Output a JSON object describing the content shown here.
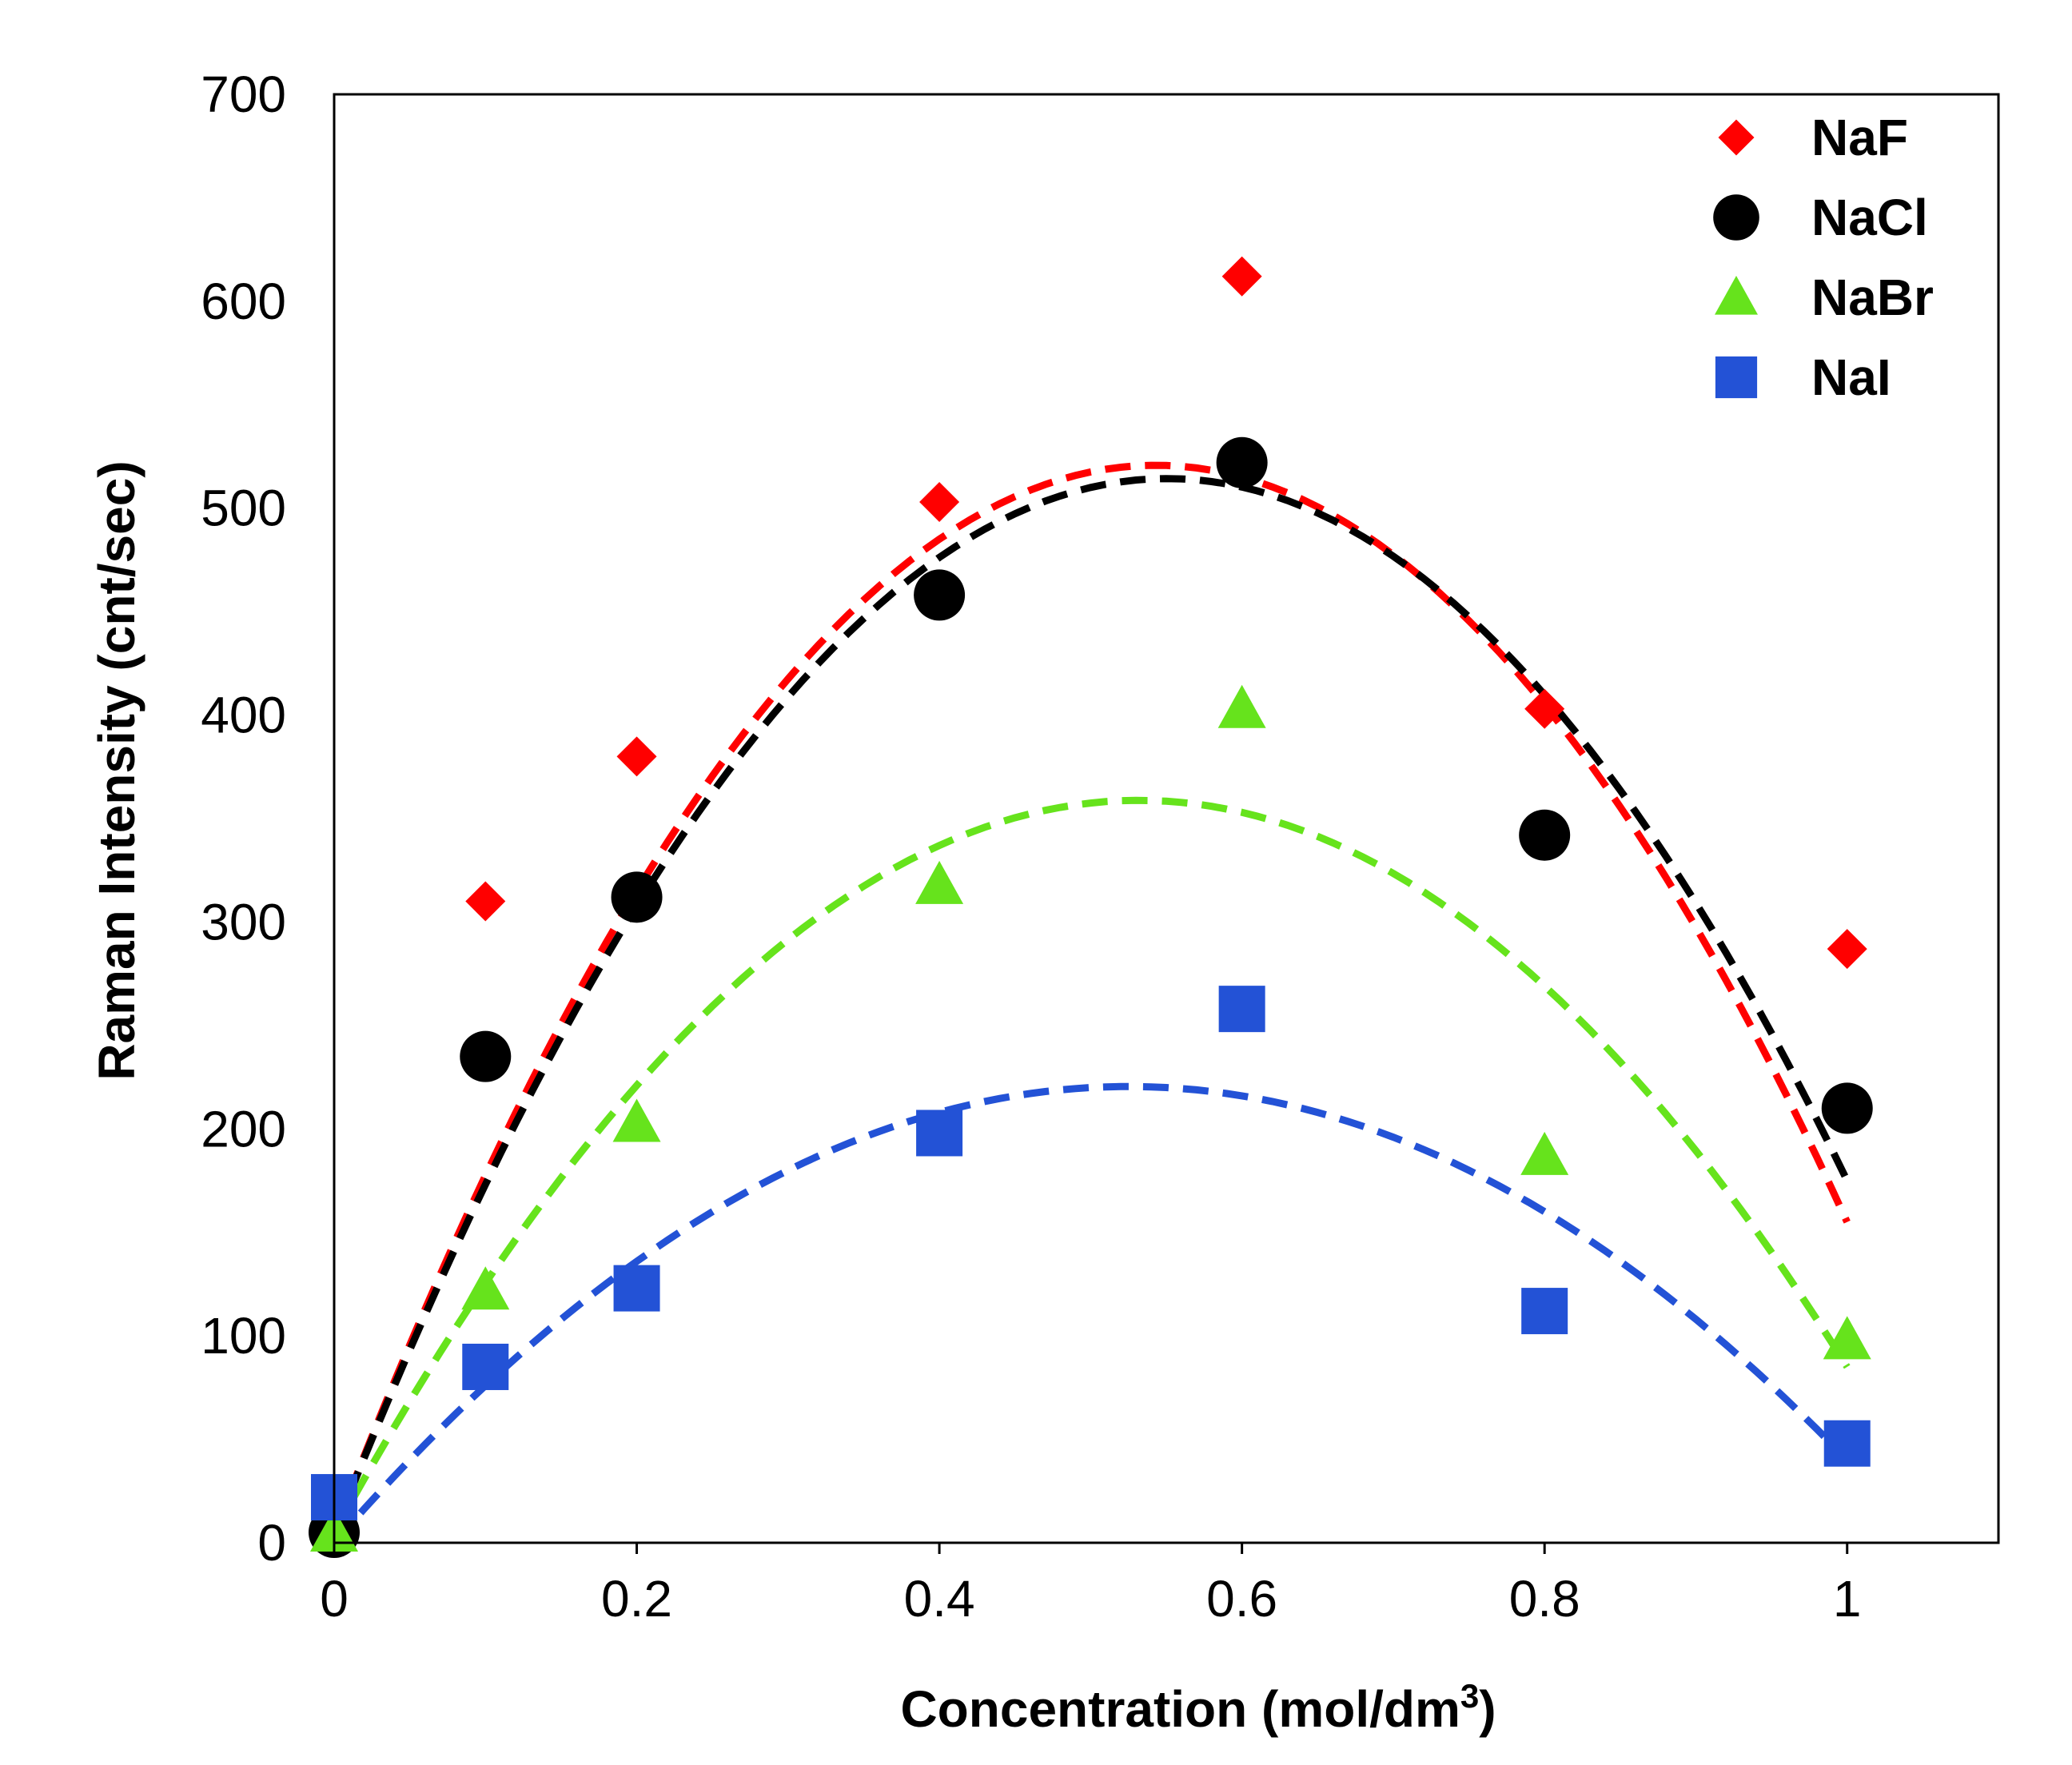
{
  "chart_data": {
    "type": "scatter",
    "title": "",
    "xlabel": "Concentration (mol/dm",
    "xlabel_sup": "3",
    "xlabel_end": ")",
    "ylabel": "Raman Intensity (cnt/sec)",
    "xlim": [
      0,
      1.1
    ],
    "ylim": [
      0,
      700
    ],
    "xticks": [
      0,
      0.2,
      0.4,
      0.6,
      0.8,
      1
    ],
    "xtick_labels": [
      "0",
      "0.2",
      "0.4",
      "0.6",
      "0.8",
      "1"
    ],
    "yticks": [
      0,
      100,
      200,
      300,
      400,
      500,
      600,
      700
    ],
    "ytick_labels": [
      "0",
      "100",
      "200",
      "300",
      "400",
      "500",
      "600",
      "700"
    ],
    "grid": false,
    "legend_position": "top-right",
    "series": [
      {
        "name": "NaF",
        "marker": "diamond",
        "color": "#ff0000",
        "x": [
          0,
          0.1,
          0.2,
          0.4,
          0.6,
          0.8,
          1
        ],
        "y": [
          5,
          310,
          380,
          503,
          612,
          403,
          287
        ],
        "fit": [
          5,
          1900,
          -1750
        ]
      },
      {
        "name": "NaCl",
        "marker": "circle",
        "color": "#000000",
        "x": [
          0,
          0.1,
          0.2,
          0.4,
          0.6,
          0.8,
          1
        ],
        "y": [
          5,
          235,
          312,
          458,
          522,
          342,
          210
        ],
        "fit": [
          5,
          1850,
          -1680
        ]
      },
      {
        "name": "NaBr",
        "marker": "triangle",
        "color": "#66e31c",
        "x": [
          0,
          0.1,
          0.2,
          0.4,
          0.6,
          0.8,
          1
        ],
        "y": [
          5,
          122,
          203,
          318,
          403,
          187,
          98
        ],
        "fit": [
          5,
          1330,
          -1250
        ]
      },
      {
        "name": "NaI",
        "marker": "square",
        "color": "#2352d6",
        "x": [
          0,
          0.1,
          0.2,
          0.4,
          0.6,
          0.8,
          1
        ],
        "y": [
          22,
          85,
          123,
          198,
          258,
          112,
          48
        ],
        "fit": [
          0,
          840,
          -800
        ]
      }
    ]
  }
}
